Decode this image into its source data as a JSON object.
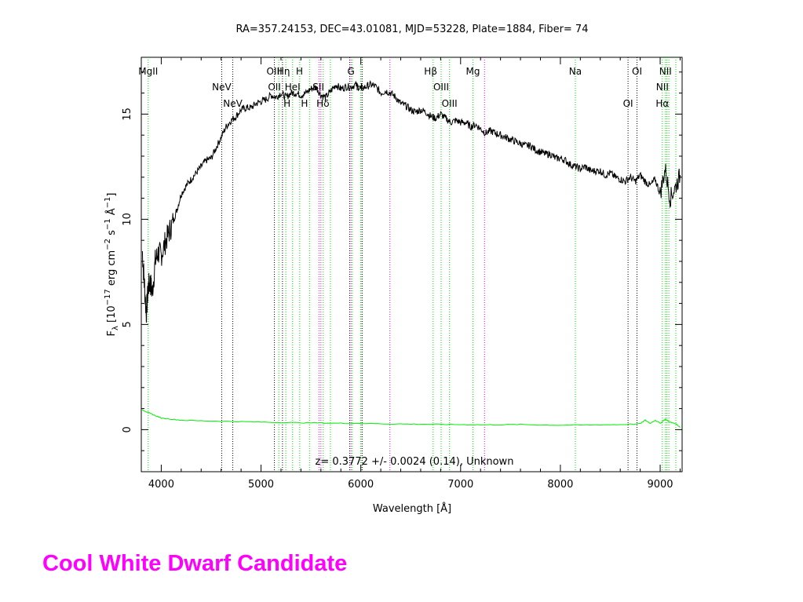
{
  "chart_data": {
    "type": "line",
    "title": "RA=357.24153, DEC=43.01081, MJD=53228, Plate=1884, Fiber= 74",
    "xlabel": "Wavelength [Å]",
    "ylabel": "F_λ [10^-17 erg cm^-2 s^-1 Å^-1]",
    "ylabel_parts": {
      "f": "F",
      "f_sub": "λ",
      "pre": "[10",
      "exp1": "−17",
      "mid1": " erg cm",
      "exp2": "−2",
      "mid2": " s",
      "exp3": "−1",
      "mid3": " Å",
      "exp4": "−1",
      "post": "]"
    },
    "xlim": [
      3800,
      9220
    ],
    "ylim": [
      -2,
      17.7
    ],
    "x_ticks": [
      4000,
      5000,
      6000,
      7000,
      8000,
      9000
    ],
    "x_tick_labels": [
      "4000",
      "5000",
      "6000",
      "7000",
      "8000",
      "9000"
    ],
    "y_ticks": [
      0,
      5,
      10,
      15
    ],
    "y_tick_labels": [
      "0",
      "5",
      "10",
      "15"
    ],
    "annotation": "z= 0.3772 +/- 0.0024 (0.14), Unknown",
    "grid": false,
    "series": [
      {
        "color": "#000000",
        "x": [
          3810,
          3830,
          3850,
          3870,
          3890,
          3910,
          3940,
          3970,
          4000,
          4040,
          4080,
          4120,
          4160,
          4200,
          4250,
          4300,
          4350,
          4400,
          4450,
          4500,
          4550,
          4600,
          4650,
          4700,
          4750,
          4800,
          4850,
          4900,
          4950,
          5000,
          5050,
          5100,
          5150,
          5200,
          5250,
          5300,
          5350,
          5400,
          5450,
          5500,
          5550,
          5600,
          5650,
          5700,
          5750,
          5800,
          5850,
          5900,
          5950,
          6000,
          6050,
          6100,
          6150,
          6200,
          6250,
          6300,
          6350,
          6400,
          6450,
          6500,
          6550,
          6600,
          6650,
          6700,
          6750,
          6800,
          6850,
          6900,
          6950,
          7000,
          7050,
          7100,
          7150,
          7200,
          7250,
          7300,
          7350,
          7400,
          7450,
          7500,
          7550,
          7600,
          7650,
          7700,
          7750,
          7800,
          7850,
          7900,
          7950,
          8000,
          8050,
          8100,
          8150,
          8200,
          8250,
          8300,
          8350,
          8400,
          8450,
          8500,
          8550,
          8600,
          8650,
          8700,
          8750,
          8800,
          8850,
          8900,
          8950,
          9000,
          9050,
          9100,
          9150,
          9200
        ],
        "y": [
          8.5,
          7.0,
          5.5,
          6.8,
          7.0,
          6.5,
          8.0,
          8.4,
          8.3,
          8.9,
          9.4,
          9.9,
          10.5,
          11.2,
          11.6,
          11.9,
          12.2,
          12.5,
          12.8,
          12.9,
          13.4,
          13.9,
          14.4,
          14.7,
          14.9,
          15.2,
          15.3,
          15.3,
          15.5,
          15.6,
          15.7,
          15.9,
          15.8,
          16.0,
          15.8,
          16.0,
          16.0,
          15.9,
          16.0,
          16.2,
          16.3,
          15.9,
          15.8,
          16.1,
          16.4,
          16.2,
          16.3,
          16.3,
          16.4,
          16.2,
          16.3,
          16.4,
          16.3,
          16.0,
          16.1,
          16.0,
          15.8,
          15.5,
          15.4,
          15.2,
          15.1,
          15.2,
          15.1,
          14.9,
          14.8,
          15.0,
          14.8,
          14.6,
          14.7,
          14.6,
          14.6,
          14.4,
          14.5,
          14.3,
          14.1,
          14.2,
          14.1,
          14.0,
          13.9,
          13.8,
          13.7,
          13.6,
          13.5,
          13.5,
          13.3,
          13.2,
          13.1,
          13.1,
          12.9,
          12.9,
          12.8,
          12.6,
          12.5,
          12.4,
          12.5,
          12.3,
          12.3,
          12.3,
          12.1,
          12.2,
          12.0,
          11.9,
          11.8,
          12.0,
          11.8,
          12.1,
          11.8,
          11.6,
          11.9,
          11.2,
          12.4,
          11.0,
          11.5,
          12.1
        ]
      },
      {
        "color": "#00ee00",
        "x": [
          3810,
          3850,
          3900,
          3950,
          4000,
          4100,
          4200,
          4400,
          4600,
          4800,
          5000,
          5200,
          5400,
          5600,
          5800,
          6000,
          6200,
          6400,
          6600,
          6800,
          7000,
          7200,
          7400,
          7600,
          7800,
          8000,
          8200,
          8400,
          8600,
          8800,
          8850,
          8900,
          8950,
          9000,
          9050,
          9100,
          9150,
          9200
        ],
        "y": [
          0.95,
          0.85,
          0.75,
          0.65,
          0.55,
          0.5,
          0.45,
          0.42,
          0.4,
          0.38,
          0.36,
          0.34,
          0.33,
          0.32,
          0.3,
          0.3,
          0.28,
          0.27,
          0.26,
          0.25,
          0.24,
          0.23,
          0.23,
          0.25,
          0.22,
          0.21,
          0.22,
          0.23,
          0.24,
          0.28,
          0.45,
          0.3,
          0.45,
          0.3,
          0.5,
          0.35,
          0.3,
          0.1
        ]
      }
    ],
    "line_markers": {
      "green": [
        3869,
        5178,
        5248,
        5316,
        5388,
        5486,
        5623,
        5695,
        5915,
        5999,
        6015,
        6725,
        6805,
        6889,
        7124,
        8150,
        9022,
        9053,
        9068,
        9087,
        9157
      ],
      "black": [
        4606,
        4717,
        5134,
        5215,
        5889,
        6012,
        8678,
        8768
      ],
      "magenta": [
        5580,
        5600,
        5902,
        6291,
        7240
      ]
    },
    "line_labels": [
      {
        "text": "MgII",
        "x": 3869,
        "row": 0
      },
      {
        "text": "NeV",
        "x": 4606,
        "row": 1
      },
      {
        "text": "NeV",
        "x": 4717,
        "row": 2
      },
      {
        "text": "OIII",
        "x": 5134,
        "row": 0
      },
      {
        "text": "OII",
        "x": 5134,
        "row": 1
      },
      {
        "text": "Hη",
        "x": 5225,
        "row": 0
      },
      {
        "text": "H",
        "x": 5260,
        "row": 2
      },
      {
        "text": "HeI",
        "x": 5316,
        "row": 1
      },
      {
        "text": "H",
        "x": 5385,
        "row": 0
      },
      {
        "text": "H",
        "x": 5435,
        "row": 2
      },
      {
        "text": "SII",
        "x": 5575,
        "row": 1
      },
      {
        "text": "Hδ",
        "x": 5620,
        "row": 2
      },
      {
        "text": "G",
        "x": 5902,
        "row": 0
      },
      {
        "text": "H",
        "x": 5985,
        "row": 1
      },
      {
        "text": "Hβ",
        "x": 6700,
        "row": 0
      },
      {
        "text": "OIII",
        "x": 6805,
        "row": 1
      },
      {
        "text": "OIII",
        "x": 6889,
        "row": 2
      },
      {
        "text": "Mg",
        "x": 7124,
        "row": 0
      },
      {
        "text": "Na",
        "x": 8150,
        "row": 0
      },
      {
        "text": "OI",
        "x": 8768,
        "row": 0
      },
      {
        "text": "OI",
        "x": 8678,
        "row": 2
      },
      {
        "text": "NII",
        "x": 9053,
        "row": 0
      },
      {
        "text": "NII",
        "x": 9022,
        "row": 1
      },
      {
        "text": "Hα",
        "x": 9022,
        "row": 2
      }
    ]
  },
  "caption": "Cool White Dwarf Candidate"
}
